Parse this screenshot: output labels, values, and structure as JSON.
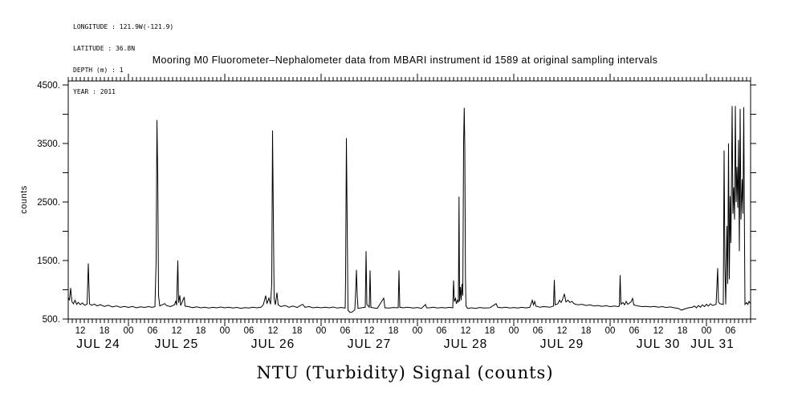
{
  "meta": {
    "lines": [
      "LONGITUDE : 121.9W(-121.9)",
      "LATITUDE : 36.8N",
      "DEPTH (m) : 1",
      "YEAR : 2011"
    ]
  },
  "colors": {
    "line": "#000000",
    "background": "#ffffff",
    "text": "#000000"
  },
  "chart_data": {
    "type": "line",
    "title": "Mooring M0 Fluorometer–Nephalometer data from MBARI instrument id 1589 at original sampling intervals",
    "xlabel": "NTU (Turbidity) Signal (counts)",
    "ylabel": "counts",
    "x_unit": "hours since JUL 24 2011 09:00",
    "xlim": [
      0,
      170
    ],
    "ylim": [
      500,
      4500
    ],
    "grid": false,
    "legend": false,
    "y_ticks": [
      500,
      1000,
      1500,
      2000,
      2500,
      3000,
      3500,
      4000,
      4500
    ],
    "y_tick_labels": [
      {
        "value": 4500,
        "label": "4500."
      },
      {
        "value": 3500,
        "label": "3500."
      },
      {
        "value": 2500,
        "label": "2500."
      },
      {
        "value": 1500,
        "label": "1500."
      },
      {
        "value": 500,
        "label": "500."
      }
    ],
    "x_minor_tick_every_hours": 1,
    "x_day_boundary_ticks_t": [
      15,
      39,
      63,
      87,
      111,
      135,
      159
    ],
    "x_hour_labels": [
      {
        "t": 3,
        "label": "12"
      },
      {
        "t": 9,
        "label": "18"
      },
      {
        "t": 15,
        "label": "00"
      },
      {
        "t": 21,
        "label": "06"
      },
      {
        "t": 27,
        "label": "12"
      },
      {
        "t": 33,
        "label": "18"
      },
      {
        "t": 39,
        "label": "00"
      },
      {
        "t": 45,
        "label": "06"
      },
      {
        "t": 51,
        "label": "12"
      },
      {
        "t": 57,
        "label": "18"
      },
      {
        "t": 63,
        "label": "00"
      },
      {
        "t": 69,
        "label": "06"
      },
      {
        "t": 75,
        "label": "12"
      },
      {
        "t": 81,
        "label": "18"
      },
      {
        "t": 87,
        "label": "00"
      },
      {
        "t": 93,
        "label": "06"
      },
      {
        "t": 99,
        "label": "12"
      },
      {
        "t": 105,
        "label": "18"
      },
      {
        "t": 111,
        "label": "00"
      },
      {
        "t": 117,
        "label": "06"
      },
      {
        "t": 123,
        "label": "12"
      },
      {
        "t": 129,
        "label": "18"
      },
      {
        "t": 135,
        "label": "00"
      },
      {
        "t": 141,
        "label": "06"
      },
      {
        "t": 147,
        "label": "12"
      },
      {
        "t": 153,
        "label": "18"
      },
      {
        "t": 159,
        "label": "00"
      },
      {
        "t": 165,
        "label": "06"
      }
    ],
    "x_day_labels": [
      {
        "t": 7.5,
        "label": "JUL 24"
      },
      {
        "t": 27,
        "label": "JUL 25"
      },
      {
        "t": 51,
        "label": "JUL 26"
      },
      {
        "t": 75,
        "label": "JUL 27"
      },
      {
        "t": 99,
        "label": "JUL 28"
      },
      {
        "t": 123,
        "label": "JUL 29"
      },
      {
        "t": 147,
        "label": "JUL 30"
      },
      {
        "t": 160.5,
        "label": "JUL 31"
      }
    ],
    "points": [
      [
        0,
        870
      ],
      [
        0.3,
        820
      ],
      [
        0.6,
        1030
      ],
      [
        0.9,
        800
      ],
      [
        1.3,
        760
      ],
      [
        1.7,
        820
      ],
      [
        2.1,
        750
      ],
      [
        2.5,
        785
      ],
      [
        3,
        745
      ],
      [
        3.5,
        775
      ],
      [
        4.1,
        735
      ],
      [
        4.7,
        755
      ],
      [
        5,
        1450
      ],
      [
        5.3,
        760
      ],
      [
        5.8,
        735
      ],
      [
        6.5,
        755
      ],
      [
        7.2,
        725
      ],
      [
        8,
        745
      ],
      [
        9,
        715
      ],
      [
        10,
        735
      ],
      [
        11,
        705
      ],
      [
        12,
        725
      ],
      [
        13,
        700
      ],
      [
        14,
        715
      ],
      [
        15,
        698
      ],
      [
        16,
        715
      ],
      [
        17,
        692
      ],
      [
        18,
        708
      ],
      [
        19,
        698
      ],
      [
        20,
        712
      ],
      [
        21,
        700
      ],
      [
        21.6,
        712
      ],
      [
        21.9,
        1500
      ],
      [
        22.1,
        3900
      ],
      [
        22.3,
        2950
      ],
      [
        22.5,
        900
      ],
      [
        22.8,
        725
      ],
      [
        23.5,
        745
      ],
      [
        24,
        765
      ],
      [
        24.5,
        730
      ],
      [
        25.5,
        712
      ],
      [
        26.5,
        745
      ],
      [
        26.8,
        810
      ],
      [
        27,
        735
      ],
      [
        27.3,
        1500
      ],
      [
        27.5,
        780
      ],
      [
        27.8,
        905
      ],
      [
        28,
        730
      ],
      [
        28.9,
        875
      ],
      [
        29.1,
        720
      ],
      [
        30,
        712
      ],
      [
        31,
        695
      ],
      [
        32,
        708
      ],
      [
        33,
        692
      ],
      [
        34,
        702
      ],
      [
        35,
        688
      ],
      [
        36,
        700
      ],
      [
        37,
        692
      ],
      [
        38,
        706
      ],
      [
        39,
        692
      ],
      [
        40,
        702
      ],
      [
        41,
        688
      ],
      [
        42,
        698
      ],
      [
        43,
        684
      ],
      [
        44,
        696
      ],
      [
        45,
        688
      ],
      [
        46,
        702
      ],
      [
        47,
        692
      ],
      [
        48,
        702
      ],
      [
        48.6,
        742
      ],
      [
        49.2,
        900
      ],
      [
        49.5,
        762
      ],
      [
        50,
        860
      ],
      [
        50.4,
        752
      ],
      [
        50.7,
        1100
      ],
      [
        50.9,
        3720
      ],
      [
        51.1,
        2250
      ],
      [
        51.3,
        852
      ],
      [
        51.6,
        742
      ],
      [
        52,
        950
      ],
      [
        52.3,
        742
      ],
      [
        53,
        712
      ],
      [
        54,
        732
      ],
      [
        55,
        702
      ],
      [
        56,
        722
      ],
      [
        57,
        697
      ],
      [
        58.4,
        752
      ],
      [
        59,
        702
      ],
      [
        60,
        712
      ],
      [
        61,
        692
      ],
      [
        62,
        702
      ],
      [
        63,
        692
      ],
      [
        64,
        702
      ],
      [
        65,
        692
      ],
      [
        66,
        706
      ],
      [
        67,
        687
      ],
      [
        68,
        697
      ],
      [
        69,
        687
      ],
      [
        69.1,
        1200
      ],
      [
        69.3,
        3590
      ],
      [
        69.5,
        2100
      ],
      [
        69.7,
        652
      ],
      [
        70.2,
        612
      ],
      [
        70.8,
        622
      ],
      [
        71.4,
        662
      ],
      [
        71.6,
        950
      ],
      [
        71.8,
        1340
      ],
      [
        72,
        900
      ],
      [
        72.2,
        682
      ],
      [
        73,
        692
      ],
      [
        74,
        702
      ],
      [
        74.2,
        1660
      ],
      [
        74.4,
        752
      ],
      [
        75,
        702
      ],
      [
        75.2,
        1330
      ],
      [
        75.4,
        702
      ],
      [
        76,
        692
      ],
      [
        77,
        682
      ],
      [
        78.6,
        858
      ],
      [
        78.9,
        692
      ],
      [
        80,
        687
      ],
      [
        81,
        697
      ],
      [
        82.2,
        692
      ],
      [
        82.4,
        1330
      ],
      [
        82.6,
        702
      ],
      [
        83.5,
        692
      ],
      [
        84.5,
        702
      ],
      [
        86,
        687
      ],
      [
        87,
        697
      ],
      [
        88,
        682
      ],
      [
        89,
        748
      ],
      [
        89.3,
        692
      ],
      [
        90,
        692
      ],
      [
        91,
        702
      ],
      [
        92,
        687
      ],
      [
        93,
        697
      ],
      [
        94,
        690
      ],
      [
        95,
        700
      ],
      [
        95.8,
        692
      ],
      [
        96,
        1160
      ],
      [
        96.2,
        800
      ],
      [
        96.5,
        852
      ],
      [
        96.7,
        762
      ],
      [
        97,
        822
      ],
      [
        97.2,
        782
      ],
      [
        97.35,
        2590
      ],
      [
        97.5,
        802
      ],
      [
        97.7,
        1050
      ],
      [
        97.9,
        822
      ],
      [
        98.1,
        1100
      ],
      [
        98.3,
        902
      ],
      [
        98.5,
        3500
      ],
      [
        98.65,
        4110
      ],
      [
        98.8,
        3450
      ],
      [
        98.95,
        1200
      ],
      [
        99.1,
        722
      ],
      [
        99.5,
        682
      ],
      [
        100.5,
        692
      ],
      [
        101.5,
        682
      ],
      [
        102.5,
        697
      ],
      [
        103.5,
        687
      ],
      [
        105,
        692
      ],
      [
        106.6,
        762
      ],
      [
        107,
        702
      ],
      [
        108,
        692
      ],
      [
        109,
        702
      ],
      [
        110,
        687
      ],
      [
        111,
        697
      ],
      [
        112,
        687
      ],
      [
        113,
        700
      ],
      [
        114,
        690
      ],
      [
        115,
        700
      ],
      [
        115.6,
        822
      ],
      [
        115.9,
        742
      ],
      [
        116.2,
        800
      ],
      [
        116.5,
        722
      ],
      [
        117.5,
        702
      ],
      [
        118.5,
        712
      ],
      [
        120,
        702
      ],
      [
        120.9,
        722
      ],
      [
        121.1,
        1170
      ],
      [
        121.3,
        742
      ],
      [
        122,
        762
      ],
      [
        122.4,
        822
      ],
      [
        122.8,
        782
      ],
      [
        123.2,
        842
      ],
      [
        123.6,
        930
      ],
      [
        124,
        792
      ],
      [
        124.5,
        822
      ],
      [
        125,
        782
      ],
      [
        125.5,
        802
      ],
      [
        126,
        762
      ],
      [
        127,
        742
      ],
      [
        128,
        752
      ],
      [
        129,
        732
      ],
      [
        130,
        742
      ],
      [
        131,
        722
      ],
      [
        132,
        732
      ],
      [
        133,
        717
      ],
      [
        134,
        727
      ],
      [
        135,
        712
      ],
      [
        136,
        722
      ],
      [
        137,
        712
      ],
      [
        137.3,
        722
      ],
      [
        137.5,
        1250
      ],
      [
        137.7,
        752
      ],
      [
        138.2,
        782
      ],
      [
        138.6,
        742
      ],
      [
        139,
        802
      ],
      [
        139.4,
        752
      ],
      [
        140.2,
        792
      ],
      [
        140.6,
        852
      ],
      [
        140.9,
        742
      ],
      [
        142,
        722
      ],
      [
        143,
        712
      ],
      [
        144,
        717
      ],
      [
        145,
        707
      ],
      [
        146,
        717
      ],
      [
        147,
        702
      ],
      [
        148,
        712
      ],
      [
        149,
        697
      ],
      [
        150,
        707
      ],
      [
        151,
        692
      ],
      [
        152,
        682
      ],
      [
        152.8,
        652
      ],
      [
        153.6,
        672
      ],
      [
        154.5,
        692
      ],
      [
        155.5,
        702
      ],
      [
        156,
        722
      ],
      [
        156.5,
        692
      ],
      [
        157,
        732
      ],
      [
        157.5,
        702
      ],
      [
        158,
        742
      ],
      [
        158.5,
        712
      ],
      [
        159,
        752
      ],
      [
        159.5,
        722
      ],
      [
        160,
        762
      ],
      [
        160.5,
        732
      ],
      [
        161.4,
        752
      ],
      [
        161.8,
        1370
      ],
      [
        162,
        790
      ],
      [
        162.4,
        760
      ],
      [
        163.2,
        750
      ],
      [
        163.4,
        3380
      ],
      [
        163.6,
        1430
      ],
      [
        163.8,
        750
      ],
      [
        164.1,
        2090
      ],
      [
        164.3,
        1100
      ],
      [
        164.5,
        3500
      ],
      [
        164.7,
        1180
      ],
      [
        164.9,
        2600
      ],
      [
        165.1,
        1800
      ],
      [
        165.4,
        4140
      ],
      [
        165.6,
        2300
      ],
      [
        165.8,
        2750
      ],
      [
        166,
        2200
      ],
      [
        166.2,
        4140
      ],
      [
        166.4,
        2500
      ],
      [
        166.6,
        3100
      ],
      [
        166.8,
        2400
      ],
      [
        167,
        3560
      ],
      [
        167.2,
        1660
      ],
      [
        167.4,
        4090
      ],
      [
        167.6,
        2200
      ],
      [
        167.9,
        2890
      ],
      [
        168.1,
        2300
      ],
      [
        168.3,
        4120
      ],
      [
        168.5,
        1700
      ],
      [
        168.6,
        750
      ],
      [
        169,
        780
      ],
      [
        169.3,
        750
      ],
      [
        169.6,
        800
      ],
      [
        170,
        760
      ]
    ]
  }
}
